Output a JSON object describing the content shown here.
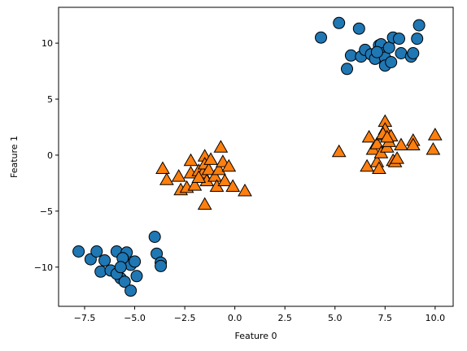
{
  "chart_data": {
    "type": "scatter",
    "title": "",
    "xlabel": "Feature 0",
    "ylabel": "Feature 1",
    "xlim": [
      -8.8,
      10.9
    ],
    "ylim": [
      -13.5,
      13.2
    ],
    "xticks": [
      -7.5,
      -5.0,
      -2.5,
      0.0,
      2.5,
      5.0,
      7.5,
      10.0
    ],
    "xtick_labels": [
      "−7.5",
      "−5.0",
      "−2.5",
      "0.0",
      "2.5",
      "5.0",
      "7.5",
      "10.0"
    ],
    "yticks": [
      -10,
      -5,
      0,
      5,
      10
    ],
    "ytick_labels": [
      "−10",
      "−5",
      "0",
      "5",
      "10"
    ],
    "grid": false,
    "legend": "none",
    "series": [
      {
        "marker": "circle",
        "color": "#1f77b4",
        "edgecolor": "#000000",
        "points": [
          [
            -7.8,
            -8.6
          ],
          [
            -7.2,
            -9.3
          ],
          [
            -6.9,
            -8.6
          ],
          [
            -6.7,
            -10.4
          ],
          [
            -6.5,
            -9.4
          ],
          [
            -6.2,
            -10.3
          ],
          [
            -5.9,
            -8.6
          ],
          [
            -5.7,
            -11.0
          ],
          [
            -5.5,
            -9.6
          ],
          [
            -5.4,
            -8.7
          ],
          [
            -5.2,
            -9.8
          ],
          [
            -5.5,
            -11.3
          ],
          [
            -5.2,
            -12.1
          ],
          [
            -5.0,
            -9.5
          ],
          [
            -4.9,
            -10.8
          ],
          [
            -5.6,
            -9.2
          ],
          [
            -5.9,
            -10.6
          ],
          [
            -4.0,
            -7.3
          ],
          [
            -3.9,
            -8.8
          ],
          [
            -3.7,
            -9.6
          ],
          [
            -3.7,
            -9.9
          ],
          [
            -5.7,
            -10.0
          ],
          [
            4.3,
            10.5
          ],
          [
            5.2,
            11.8
          ],
          [
            5.6,
            7.7
          ],
          [
            5.8,
            8.9
          ],
          [
            6.2,
            11.3
          ],
          [
            6.3,
            8.8
          ],
          [
            6.5,
            9.4
          ],
          [
            6.8,
            9.0
          ],
          [
            7.0,
            8.6
          ],
          [
            7.2,
            9.8
          ],
          [
            7.3,
            9.9
          ],
          [
            7.4,
            9.1
          ],
          [
            7.5,
            8.7
          ],
          [
            7.5,
            8.0
          ],
          [
            7.7,
            9.6
          ],
          [
            7.8,
            8.3
          ],
          [
            7.9,
            10.5
          ],
          [
            8.2,
            10.4
          ],
          [
            8.3,
            9.1
          ],
          [
            8.8,
            8.8
          ],
          [
            8.9,
            9.1
          ],
          [
            9.1,
            10.4
          ],
          [
            9.2,
            11.6
          ],
          [
            7.1,
            9.2
          ]
        ]
      },
      {
        "marker": "triangle",
        "color": "#ff7f0e",
        "edgecolor": "#000000",
        "points": [
          [
            -3.6,
            -1.2
          ],
          [
            -3.4,
            -2.2
          ],
          [
            -2.8,
            -1.9
          ],
          [
            -2.7,
            -3.1
          ],
          [
            -2.4,
            -2.9
          ],
          [
            -2.2,
            -0.5
          ],
          [
            -2.2,
            -1.6
          ],
          [
            -2.0,
            -2.7
          ],
          [
            -1.8,
            -1.4
          ],
          [
            -1.6,
            -1.6
          ],
          [
            -1.5,
            -0.1
          ],
          [
            -1.5,
            -0.8
          ],
          [
            -1.4,
            -2.3
          ],
          [
            -1.3,
            -1.3
          ],
          [
            -1.2,
            -0.4
          ],
          [
            -1.0,
            -1.9
          ],
          [
            -0.9,
            -2.8
          ],
          [
            -0.8,
            -1.3
          ],
          [
            -0.7,
            0.7
          ],
          [
            -0.6,
            -0.6
          ],
          [
            -0.5,
            -2.3
          ],
          [
            -0.3,
            -1.0
          ],
          [
            -0.1,
            -2.8
          ],
          [
            0.5,
            -3.2
          ],
          [
            -1.5,
            -4.4
          ],
          [
            -1.8,
            -2.0
          ],
          [
            5.2,
            0.3
          ],
          [
            6.6,
            -1.0
          ],
          [
            6.7,
            1.6
          ],
          [
            6.9,
            0.5
          ],
          [
            7.1,
            -0.6
          ],
          [
            7.1,
            1.0
          ],
          [
            7.2,
            -1.2
          ],
          [
            7.3,
            0.2
          ],
          [
            7.4,
            1.8
          ],
          [
            7.5,
            3.0
          ],
          [
            7.5,
            2.3
          ],
          [
            7.6,
            0.7
          ],
          [
            7.7,
            1.2
          ],
          [
            7.8,
            1.7
          ],
          [
            7.9,
            -0.5
          ],
          [
            8.0,
            -0.6
          ],
          [
            8.1,
            -0.3
          ],
          [
            8.3,
            0.9
          ],
          [
            8.9,
            1.3
          ],
          [
            8.9,
            0.9
          ],
          [
            9.9,
            0.5
          ],
          [
            10.0,
            1.8
          ],
          [
            7.4,
            1.9
          ],
          [
            7.6,
            1.6
          ]
        ]
      }
    ]
  }
}
